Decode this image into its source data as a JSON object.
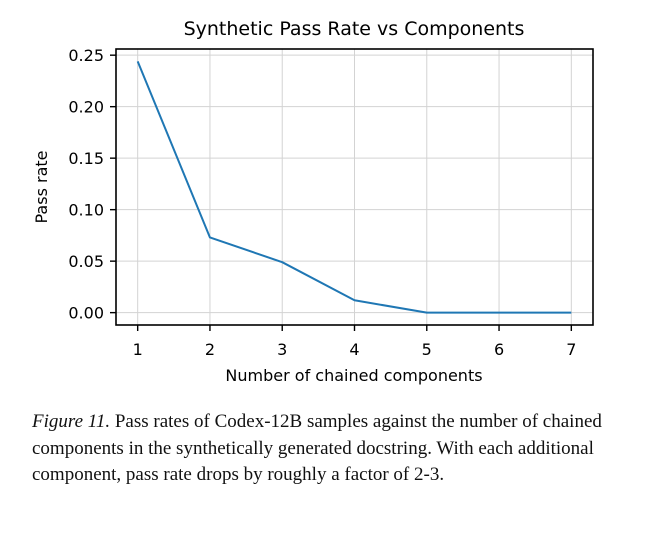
{
  "chart_data": {
    "type": "line",
    "title": "Synthetic Pass Rate vs Components",
    "xlabel": "Number of chained components",
    "ylabel": "Pass rate",
    "x": [
      1,
      2,
      3,
      4,
      5,
      6,
      7
    ],
    "series": [
      {
        "values": [
          0.244,
          0.073,
          0.049,
          0.012,
          0.0,
          0.0,
          0.0
        ],
        "color": "#1f77b4"
      }
    ],
    "xlim": [
      0.7,
      7.3
    ],
    "ylim": [
      -0.012,
      0.256
    ],
    "xticks": [
      1,
      2,
      3,
      4,
      5,
      6,
      7
    ],
    "xtick_labels": [
      "1",
      "2",
      "3",
      "4",
      "5",
      "6",
      "7"
    ],
    "yticks": [
      0.0,
      0.05,
      0.1,
      0.15,
      0.2,
      0.25
    ],
    "ytick_labels": [
      "0.00",
      "0.05",
      "0.10",
      "0.15",
      "0.20",
      "0.25"
    ],
    "grid": true
  },
  "caption": {
    "label": "Figure 11.",
    "text": " Pass rates of Codex-12B samples against the number of chained components in the synthetically generated docstring. With each additional component, pass rate drops by roughly a factor of 2-3."
  }
}
